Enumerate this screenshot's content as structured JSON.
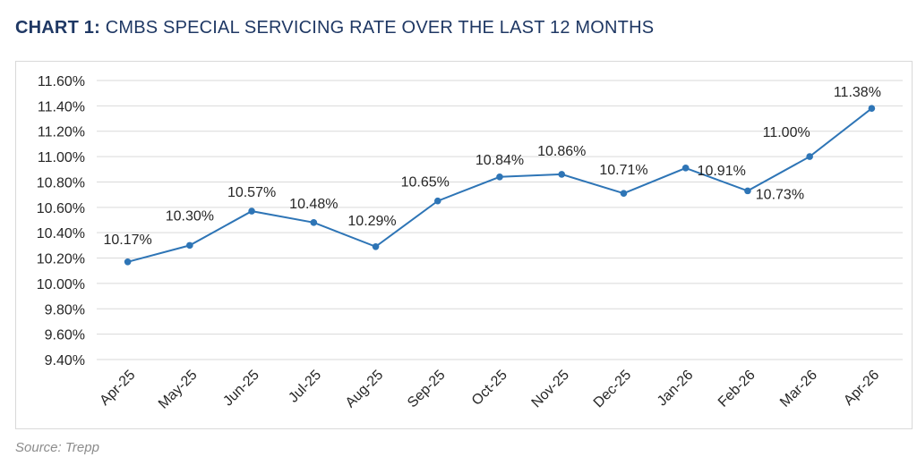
{
  "title": {
    "prefix": "CHART 1:",
    "text": " CMBS SPECIAL SERVICING RATE OVER THE LAST 12 MONTHS"
  },
  "source": "Source: Trepp",
  "colors": {
    "line": "#2e75b6",
    "title": "#1f3864",
    "grid": "#d9d9d9",
    "text": "#262626"
  },
  "chart_data": {
    "type": "line",
    "title": "CHART 1: CMBS SPECIAL SERVICING RATE OVER THE LAST 12 MONTHS",
    "categories": [
      "Apr-25",
      "May-25",
      "Jun-25",
      "Jul-25",
      "Aug-25",
      "Sep-25",
      "Oct-25",
      "Nov-25",
      "Dec-25",
      "Jan-26",
      "Feb-26",
      "Mar-26",
      "Apr-26"
    ],
    "series": [
      {
        "values": [
          10.17,
          10.3,
          10.57,
          10.48,
          10.29,
          10.65,
          10.84,
          10.86,
          10.71,
          10.91,
          10.73,
          11.0,
          11.38
        ]
      }
    ],
    "data_labels": [
      "10.17%",
      "10.30%",
      "10.57%",
      "10.48%",
      "10.29%",
      "10.65%",
      "10.84%",
      "10.86%",
      "10.71%",
      "10.91%",
      "10.73%",
      "11.00%",
      "11.38%"
    ],
    "ylim": [
      9.4,
      11.6
    ],
    "yticks": [
      9.4,
      9.6,
      9.8,
      10.0,
      10.2,
      10.4,
      10.6,
      10.8,
      11.0,
      11.2,
      11.4,
      11.6
    ],
    "ytick_labels": [
      "9.40%",
      "9.60%",
      "9.80%",
      "10.00%",
      "10.20%",
      "10.40%",
      "10.60%",
      "10.80%",
      "11.00%",
      "11.20%",
      "11.40%",
      "11.60%"
    ],
    "grid": true,
    "legend": "none",
    "xlabel": "",
    "ylabel": ""
  }
}
